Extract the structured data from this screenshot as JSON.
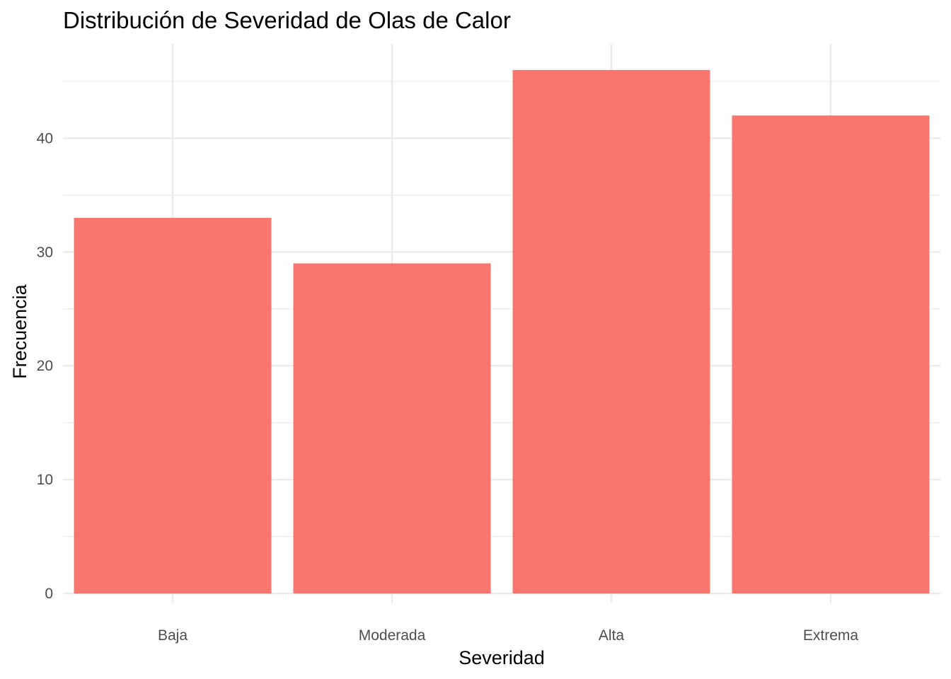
{
  "chart_data": {
    "type": "bar",
    "title": "Distribución de Severidad de Olas de Calor",
    "xlabel": "Severidad",
    "ylabel": "Frecuencia",
    "categories": [
      "Baja",
      "Moderada",
      "Alta",
      "Extrema"
    ],
    "values": [
      33,
      29,
      46,
      42
    ],
    "ylim": [
      0,
      48
    ],
    "yticks": [
      0,
      10,
      20,
      30,
      40
    ],
    "grid": true,
    "bar_color": "#F8766D",
    "grid_color": "#EBEBEB",
    "background": "#FFFFFF"
  }
}
